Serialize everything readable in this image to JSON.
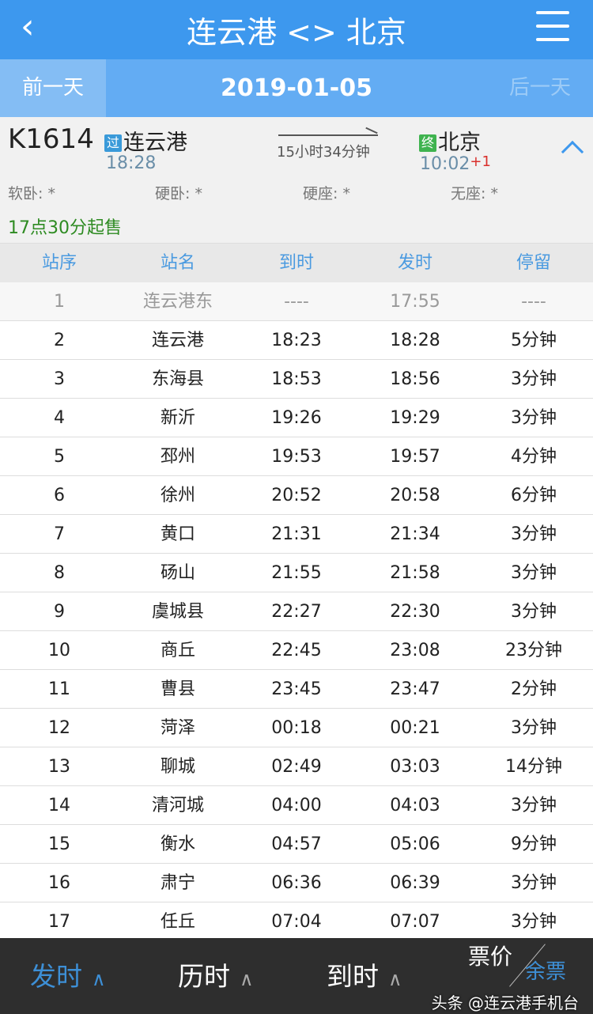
{
  "header": {
    "back_icon": "chevron-left-icon",
    "title": "连云港 <> 北京",
    "menu_icon": "list-menu-icon"
  },
  "datebar": {
    "prev": "前一天",
    "date": "2019-01-05",
    "next": "后一天"
  },
  "train": {
    "number": "K1614",
    "from_badge": "过",
    "from": "连云港",
    "from_time": "18:28",
    "duration": "15小时34分钟",
    "to_badge": "终",
    "to": "北京",
    "to_time": "10:02",
    "day_offset": "+1",
    "seats": [
      "软卧: *",
      "硬卧: *",
      "硬座: *",
      "无座: *"
    ],
    "sale": "17点30分起售",
    "colors": {
      "from_badge": "#3a9ad9",
      "to_badge": "#3fb34f",
      "sale": "#2e8b22",
      "offset": "#d9302c"
    }
  },
  "table": {
    "headers": [
      "站序",
      "站名",
      "到时",
      "发时",
      "停留"
    ],
    "rows": [
      [
        "1",
        "连云港东",
        "----",
        "17:55",
        "----"
      ],
      [
        "2",
        "连云港",
        "18:23",
        "18:28",
        "5分钟"
      ],
      [
        "3",
        "东海县",
        "18:53",
        "18:56",
        "3分钟"
      ],
      [
        "4",
        "新沂",
        "19:26",
        "19:29",
        "3分钟"
      ],
      [
        "5",
        "邳州",
        "19:53",
        "19:57",
        "4分钟"
      ],
      [
        "6",
        "徐州",
        "20:52",
        "20:58",
        "6分钟"
      ],
      [
        "7",
        "黄口",
        "21:31",
        "21:34",
        "3分钟"
      ],
      [
        "8",
        "砀山",
        "21:55",
        "21:58",
        "3分钟"
      ],
      [
        "9",
        "虞城县",
        "22:27",
        "22:30",
        "3分钟"
      ],
      [
        "10",
        "商丘",
        "22:45",
        "23:08",
        "23分钟"
      ],
      [
        "11",
        "曹县",
        "23:45",
        "23:47",
        "2分钟"
      ],
      [
        "12",
        "菏泽",
        "00:18",
        "00:21",
        "3分钟"
      ],
      [
        "13",
        "聊城",
        "02:49",
        "03:03",
        "14分钟"
      ],
      [
        "14",
        "清河城",
        "04:00",
        "04:03",
        "3分钟"
      ],
      [
        "15",
        "衡水",
        "04:57",
        "05:06",
        "9分钟"
      ],
      [
        "16",
        "肃宁",
        "06:36",
        "06:39",
        "3分钟"
      ],
      [
        "17",
        "任丘",
        "07:04",
        "07:07",
        "3分钟"
      ]
    ]
  },
  "bottom": {
    "sort_depart": "发时",
    "sort_duration": "历时",
    "sort_arrive": "到时",
    "price": "票价",
    "remaining": "余票",
    "caret": "^",
    "active_color": "#3d8fd6"
  },
  "watermark": "头条 @连云港手机台"
}
